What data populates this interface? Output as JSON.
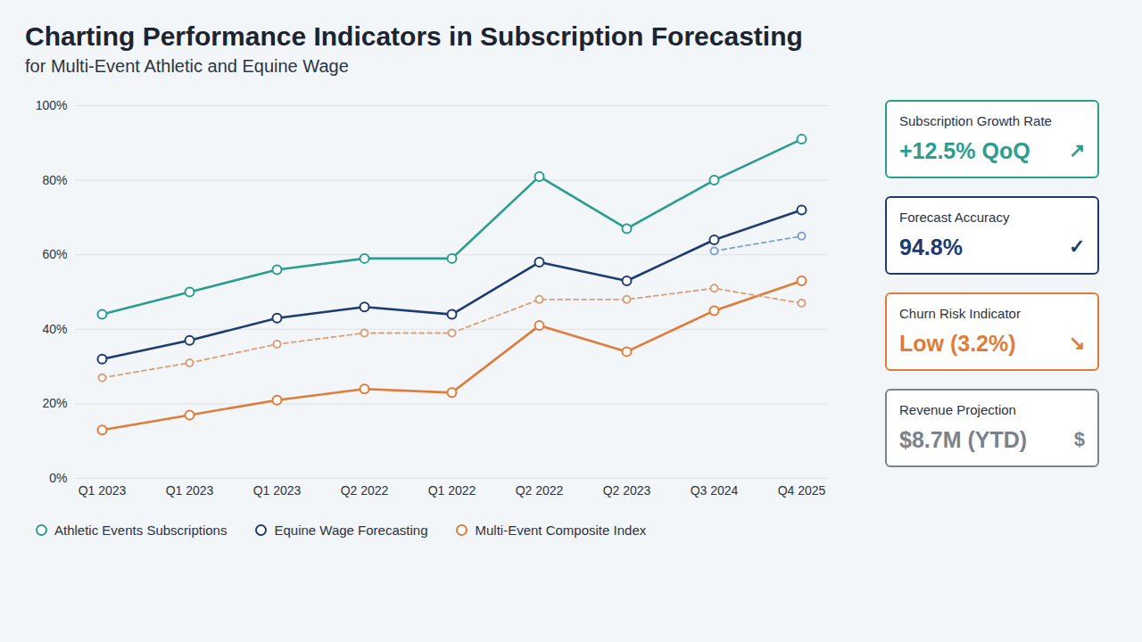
{
  "chart_data": {
    "type": "line",
    "title": "Charting Performance Indicators in Subscription Forecasting",
    "subtitle": "for Multi-Event Athletic and Equine Wage",
    "categories": [
      "Q1 2023",
      "Q1 2023",
      "Q1 2023",
      "Q2 2022",
      "Q1 2022",
      "Q2 2022",
      "Q2 2023",
      "Q3 2024",
      "Q4 2025"
    ],
    "series": [
      {
        "name": "Athletic Events Subscriptions",
        "color": "#2a9d8f",
        "marker": "circle",
        "line_style": "solid",
        "values": [
          44,
          50,
          56,
          59,
          59,
          81,
          67,
          80,
          91
        ]
      },
      {
        "name": "Equine Wage Forecasting",
        "color": "#1d3b6f",
        "marker": "circle",
        "line_style": "solid",
        "values": [
          32,
          37,
          43,
          46,
          44,
          58,
          53,
          64,
          72
        ]
      },
      {
        "name": "Multi-Event Composite Index",
        "color": "#e07b39",
        "marker": "circle",
        "line_style": "solid",
        "values": [
          13,
          17,
          21,
          24,
          23,
          41,
          34,
          45,
          53
        ]
      },
      {
        "color": "#d9a07a",
        "marker": "circle",
        "line_style": "dashed",
        "values": [
          27,
          31,
          36,
          39,
          39,
          48,
          48,
          51,
          47
        ]
      },
      {
        "color": "#7fa3d0",
        "marker": "circle",
        "line_style": "dashed",
        "values": [
          null,
          null,
          null,
          null,
          null,
          null,
          null,
          61,
          65
        ]
      }
    ],
    "ylim": [
      0,
      100
    ],
    "yticks": [
      {
        "value": 0,
        "label": "0%"
      },
      {
        "value": 20,
        "label": "20%"
      },
      {
        "value": 40,
        "label": "40%"
      },
      {
        "value": 60,
        "label": "60%"
      },
      {
        "value": 80,
        "label": "80%"
      },
      {
        "value": 100,
        "label": "100%"
      }
    ],
    "grid": true,
    "legend": "bottom",
    "annotations": [
      {
        "label": "Subscription Growth Rate",
        "value": "+12.5% QoQ",
        "icon": "↗",
        "color": "#2a9d8f"
      },
      {
        "label": "Forecast Accuracy",
        "value": "94.8%",
        "icon": "✓",
        "color": "#1d3b6f"
      },
      {
        "label": "Churn Risk Indicator",
        "value": "Low (3.2%)",
        "icon": "↘",
        "color": "#e07b39"
      },
      {
        "label": "Revenue Projection",
        "value": "$8.7M (YTD)",
        "icon": "$",
        "color": "#7a828c"
      }
    ]
  }
}
